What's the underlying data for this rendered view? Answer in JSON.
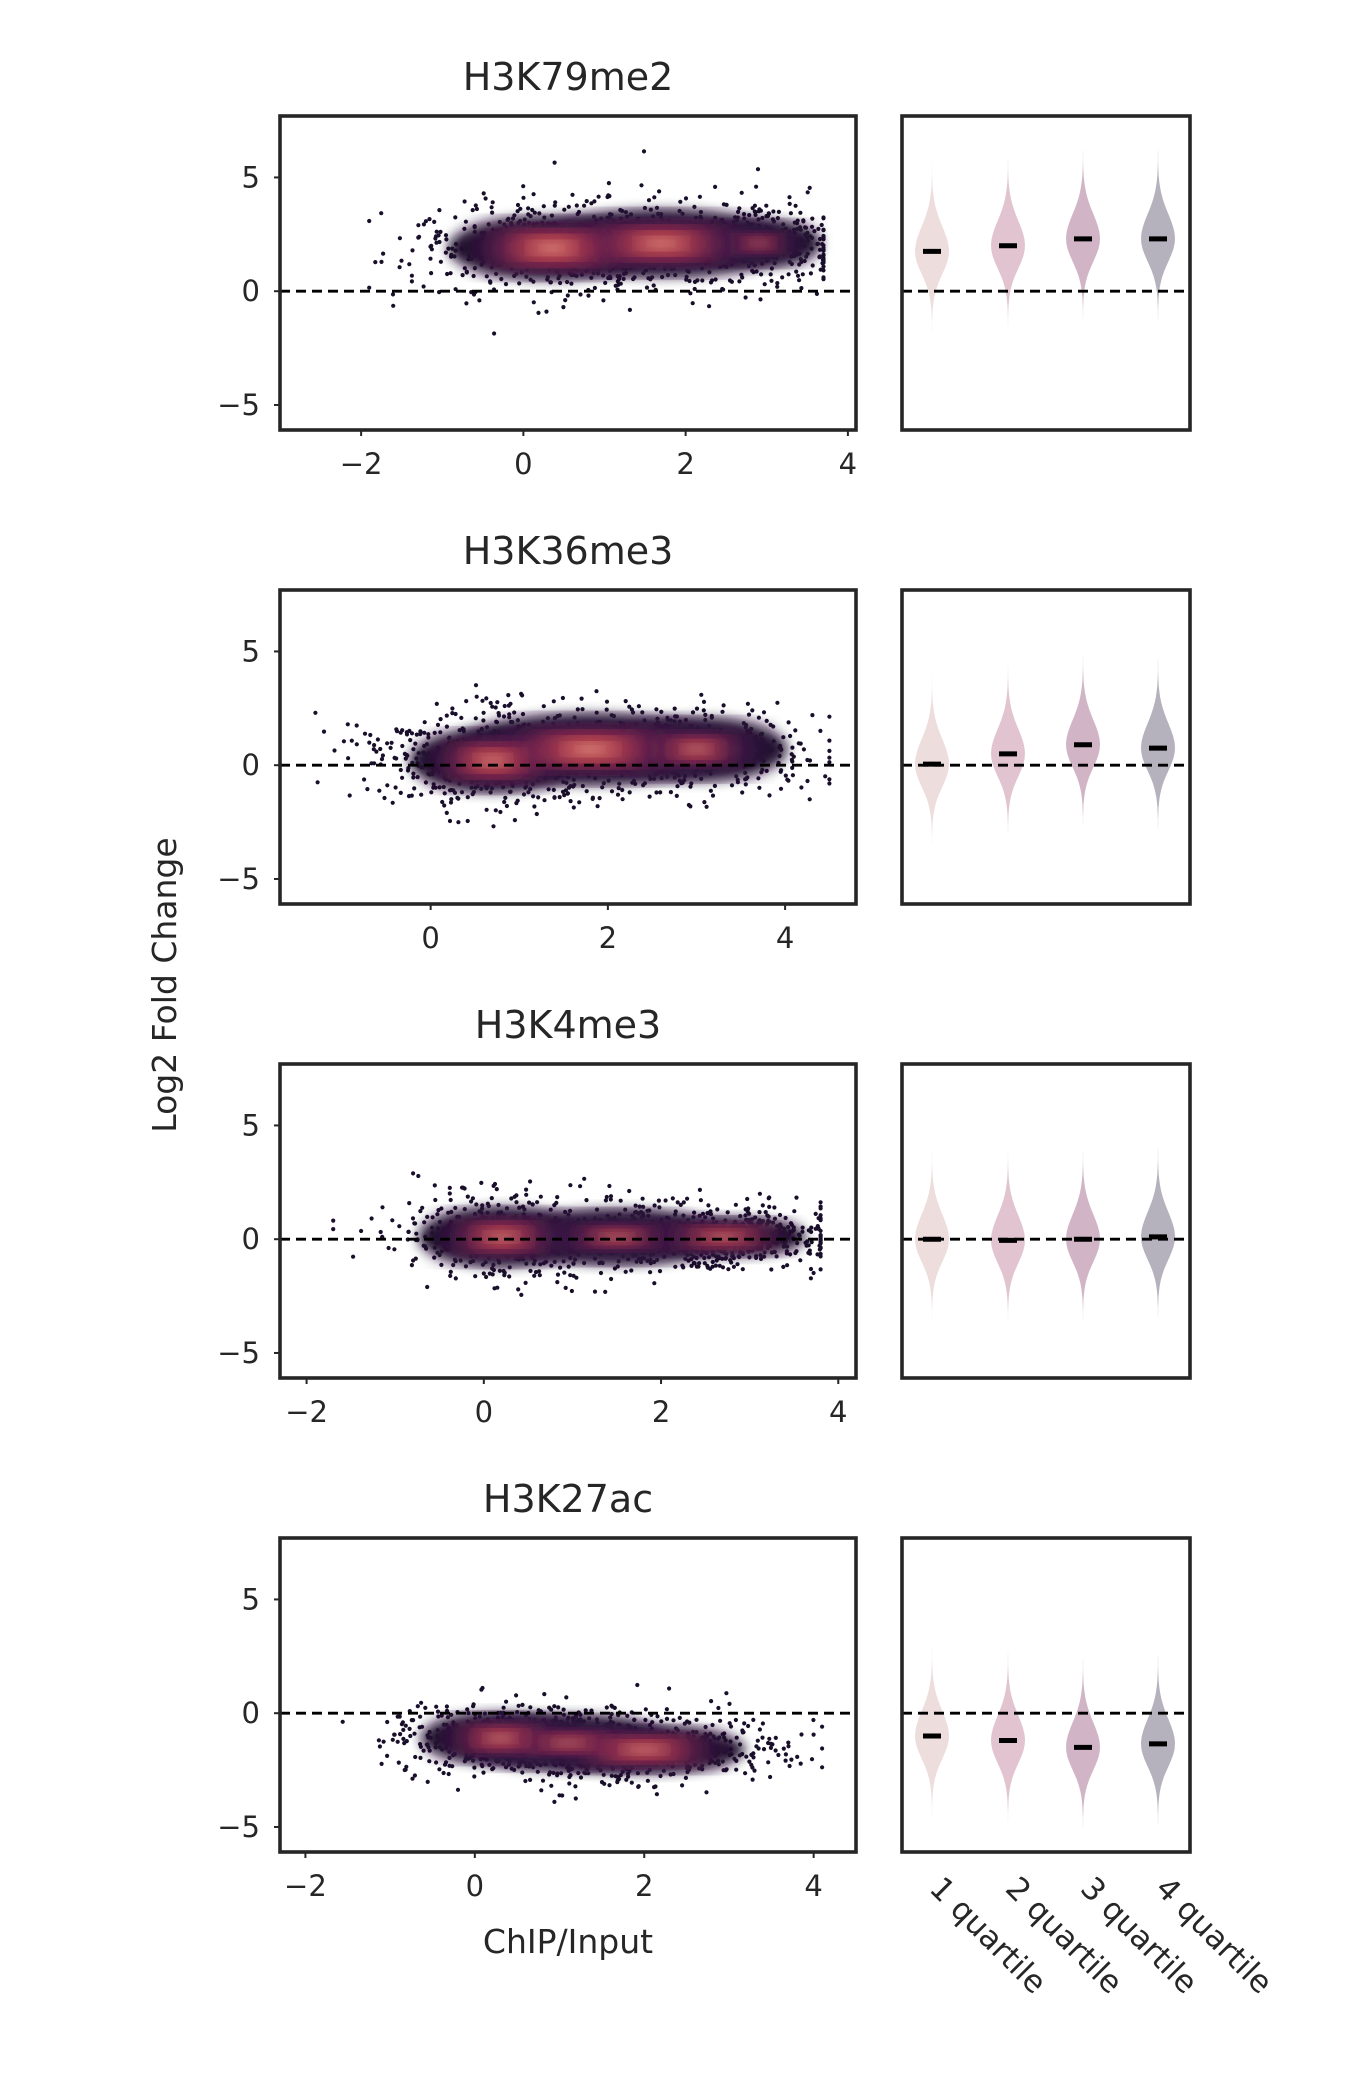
{
  "figure": {
    "ylabel": "Log2 Fold Change",
    "xlabel": "ChIP/Input"
  },
  "chart_data": [
    {
      "type": "scatter",
      "title": "H3K79me2",
      "xlim": [
        -3.0,
        4.1
      ],
      "ylim": [
        -6.1,
        7.7
      ],
      "xticks": [
        -2,
        0,
        2,
        4
      ],
      "yticks": [
        -5,
        0,
        5
      ],
      "hline_y": 0,
      "density_clusters": [
        {
          "x": 0.35,
          "y": 1.9,
          "sx": 0.75,
          "sy": 0.8,
          "w": 0.45
        },
        {
          "x": 1.7,
          "y": 2.1,
          "sx": 0.9,
          "sy": 0.85,
          "w": 0.35
        },
        {
          "x": 2.9,
          "y": 2.1,
          "sx": 0.45,
          "sy": 0.6,
          "w": 0.2
        }
      ],
      "x_range_points": [
        -1.9,
        3.7
      ],
      "y_range_points": [
        -2.5,
        6.5
      ],
      "quartile_medians": [
        1.75,
        2.0,
        2.3,
        2.3
      ]
    },
    {
      "type": "scatter",
      "title": "H3K36me3",
      "xlim": [
        -1.7,
        4.8
      ],
      "ylim": [
        -6.1,
        7.7
      ],
      "xticks": [
        0,
        2,
        4
      ],
      "yticks": [
        -5,
        0,
        5
      ],
      "hline_y": 0,
      "density_clusters": [
        {
          "x": 0.7,
          "y": 0.2,
          "sx": 0.55,
          "sy": 0.8,
          "w": 0.4
        },
        {
          "x": 1.8,
          "y": 0.7,
          "sx": 0.9,
          "sy": 0.9,
          "w": 0.35
        },
        {
          "x": 3.0,
          "y": 0.7,
          "sx": 0.6,
          "sy": 0.8,
          "w": 0.25
        }
      ],
      "x_range_points": [
        -1.3,
        4.5
      ],
      "y_range_points": [
        -3.9,
        4.8
      ],
      "quartile_medians": [
        0.05,
        0.5,
        0.9,
        0.75
      ]
    },
    {
      "type": "scatter",
      "title": "H3K4me3",
      "xlim": [
        -2.3,
        4.2
      ],
      "ylim": [
        -6.1,
        7.7
      ],
      "xticks": [
        -2,
        0,
        2,
        4
      ],
      "yticks": [
        -5,
        0,
        5
      ],
      "hline_y": 0,
      "density_clusters": [
        {
          "x": 0.2,
          "y": 0.1,
          "sx": 0.55,
          "sy": 0.75,
          "w": 0.35
        },
        {
          "x": 2.7,
          "y": 0.1,
          "sx": 0.55,
          "sy": 0.5,
          "w": 0.45
        },
        {
          "x": 1.5,
          "y": 0.1,
          "sx": 0.7,
          "sy": 0.7,
          "w": 0.2
        }
      ],
      "x_range_points": [
        -1.7,
        3.8
      ],
      "y_range_points": [
        -3.8,
        3.8
      ],
      "quartile_medians": [
        0.0,
        -0.05,
        0.0,
        0.1
      ]
    },
    {
      "type": "scatter",
      "title": "H3K27ac",
      "xlim": [
        -2.3,
        4.5
      ],
      "ylim": [
        -6.1,
        7.7
      ],
      "xticks": [
        -2,
        0,
        2,
        4
      ],
      "yticks": [
        -5,
        0,
        5
      ],
      "hline_y": 0,
      "density_clusters": [
        {
          "x": 0.3,
          "y": -1.1,
          "sx": 0.55,
          "sy": 0.65,
          "w": 0.35
        },
        {
          "x": 2.0,
          "y": -1.6,
          "sx": 0.7,
          "sy": 0.6,
          "w": 0.45
        },
        {
          "x": 1.1,
          "y": -1.3,
          "sx": 0.7,
          "sy": 0.7,
          "w": 0.2
        }
      ],
      "x_range_points": [
        -1.9,
        4.1
      ],
      "y_range_points": [
        -5.0,
        3.4
      ],
      "quartile_medians": [
        -1.0,
        -1.2,
        -1.5,
        -1.35
      ]
    }
  ],
  "violins": {
    "type": "violin",
    "categories": [
      "1 quartile",
      "2 quartile",
      "3 quartile",
      "4 quartile"
    ],
    "colors": [
      "#ead7d7",
      "#dcbac7",
      "#c9a8bd",
      "#a9a4b2"
    ],
    "ylim": [
      -6.1,
      7.7
    ],
    "hline_y": 0
  },
  "colors": {
    "density_low": "#1a0f2a",
    "density_high": "#faebdd",
    "frame": "#262626"
  }
}
